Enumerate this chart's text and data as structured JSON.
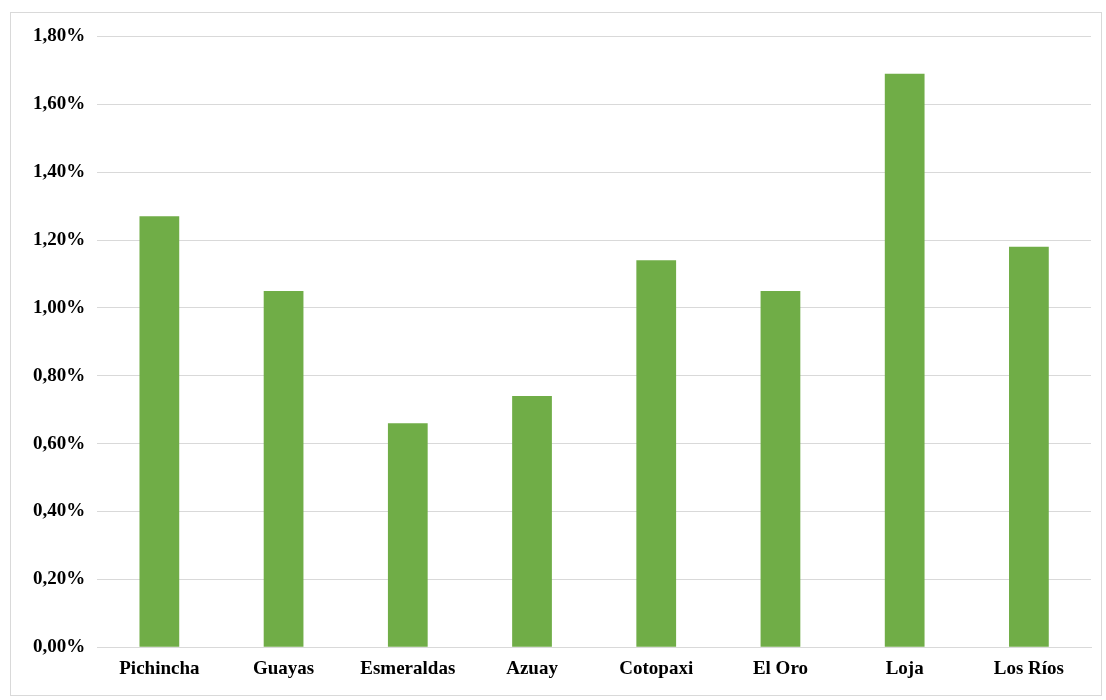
{
  "chart_data": {
    "type": "bar",
    "categories": [
      "Pichincha",
      "Guayas",
      "Esmeraldas",
      "Azuay",
      "Cotopaxi",
      "El Oro",
      "Loja",
      "Los Ríos"
    ],
    "values": [
      1.27,
      1.05,
      0.66,
      0.74,
      1.14,
      1.05,
      1.69,
      1.18
    ],
    "color": "#70ad47",
    "ylim": [
      0,
      1.8
    ],
    "yticks": [
      {
        "value": 0,
        "label": "0,00%"
      },
      {
        "value": 0.2,
        "label": "0,20%"
      },
      {
        "value": 0.4,
        "label": "0,40%"
      },
      {
        "value": 0.6,
        "label": "0,60%"
      },
      {
        "value": 0.8,
        "label": "0,80%"
      },
      {
        "value": 1,
        "label": "1,00%"
      },
      {
        "value": 1.2,
        "label": "1,20%"
      },
      {
        "value": 1.4,
        "label": "1,40%"
      },
      {
        "value": 1.6,
        "label": "1,60%"
      },
      {
        "value": 1.8,
        "label": "1,80%"
      }
    ],
    "grid": "y"
  }
}
